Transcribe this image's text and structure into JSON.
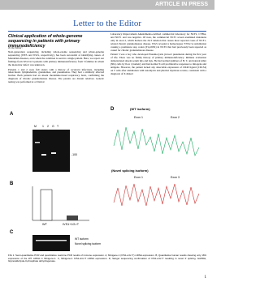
{
  "header": {
    "banner": "ARTICLE IN PRESS",
    "section": "Letter to the Editor"
  },
  "left": {
    "title": "Clinical application of whole-genome sequencing in patients with primary immunodeficiency",
    "salutation": "To the Editor:",
    "paragraphs": [
      "Next-generation sequencing, including whole-exome sequencing and whole-genome sequencing (WES and WGS, respectively), has been successful at identifying causes of Mendelian diseases, even when the condition is seen in a single patient. Here, we report our findings from WGS in 6 patients with primary immunodeficiency from 5 families in whom the molecular defect was unknown.",
      "Patients 1 and 2 were full sisters with a history of recurrent infections, including tuberculosis lymphadenitis, granulomas, and pneumonias. They had a similarly affected brother. Both patients had an absent rhodamine-based respiratory burst, confirming the diagnosis of chronic granulomatous disease. The parents are distant relatives. Genetic testing was performed at a Clinical"
    ]
  },
  "right": {
    "paragraphs": [
      "Laboratory Improvement Amendments-certified commercial laboratory for NCF2, CYBA, and NCF1 and was negative. Of note, the commercial NCF1 screen examined mutations only in exon 2, which harbors the 2GT deletion that causes most reported cases of NCF1-related chronic granulomatous disease. WGS revealed a homozygous T/WG>A substitution causing a premature stop codon (Trp193X) in NCF2 that had previously been reported as causal for chronic granulomatous disease.",
      "Patient 3 was a boy who developed Pneumocystis jiroveci pneumonia during the first year of life. There was no family history of primary immunodeficiency. Immune evaluation demonstrated absent serum IgG and IgA. He had normal numbers of B, T, and natural killer (NK) cells by flow cytometry and had normal T-cell proliferative responses to mitogens and antigens. However, the patient lacked any detectable expression of CD40 ligand (CD154) on T cells after stimulation with ionomycin and phorbol myristate acetate, consistent with a diagnosis of X-linked"
    ]
  },
  "figure": {
    "panels": [
      "A",
      "B",
      "C",
      "D"
    ],
    "gel_lanes": [
      "M",
      "1",
      "2",
      "G",
      "T"
    ],
    "bp": "-100",
    "wt_isoform": "(WT isoform)",
    "novel_isoform": "(Novel splicing isoform)",
    "exon_labels": [
      "Exon 1",
      "Exon 2",
      "Exon 1",
      "Exon 3"
    ],
    "bar_labels": [
      "WT",
      "IVS1+1G>T"
    ],
    "diagram_labels": [
      "WT isoform",
      "Novel splicing isoform"
    ],
    "caption": "FIG 1. Semi-quantitative PCR and quantitative real-time PCR results of immune expression. A, Minigene-1 (IVS1+1G>T) mRNA expression. B, Quantitative human results showing only 16% expression of the WT mRNA in Minigene-1. C, Minigene-1 IVS1+1G>T mRNA expression. D, Sanger sequencing confirmation of IVS1+1G>T resulting in novel 3' splicing. GAPDH, Glyceraldehyde-3-phosphate dehydrogenase."
  },
  "footer": {
    "page": "1"
  }
}
